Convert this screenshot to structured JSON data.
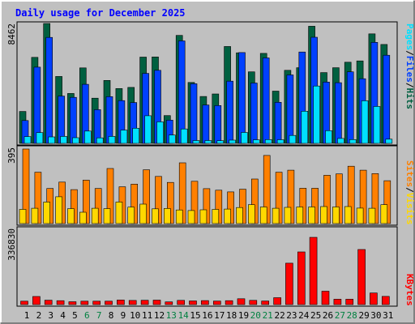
{
  "chart_data": [
    {
      "type": "bar",
      "title": "Daily usage for December 2025",
      "categories": [
        "1",
        "2",
        "3",
        "4",
        "5",
        "6",
        "7",
        "8",
        "9",
        "10",
        "11",
        "12",
        "13",
        "14",
        "15",
        "16",
        "17",
        "18",
        "19",
        "20",
        "21",
        "22",
        "23",
        "24",
        "25",
        "26",
        "27",
        "28",
        "29",
        "30",
        "31"
      ],
      "weekend_days": [
        "6",
        "7",
        "13",
        "14",
        "20",
        "21",
        "27",
        "28"
      ],
      "y_tick": "8462",
      "ylim": [
        0,
        8462
      ],
      "series": [
        {
          "name": "Hits",
          "color": "#006040",
          "values": [
            2250,
            6070,
            8462,
            4720,
            3520,
            5330,
            3190,
            4440,
            3870,
            3950,
            6090,
            6100,
            1960,
            7620,
            4300,
            3310,
            3490,
            6840,
            6390,
            5050,
            6350,
            3690,
            5160,
            5340,
            8270,
            5000,
            5340,
            5730,
            5820,
            7730,
            6980
          ]
        },
        {
          "name": "Files",
          "color": "#0040ff",
          "values": [
            1610,
            5380,
            7480,
            3340,
            3250,
            4170,
            2380,
            3300,
            3020,
            2880,
            4940,
            5160,
            1640,
            7230,
            4210,
            2710,
            2670,
            4390,
            6410,
            4260,
            6030,
            2900,
            4830,
            6450,
            7490,
            4330,
            4280,
            5050,
            4560,
            7130,
            6220
          ]
        },
        {
          "name": "Pages",
          "color": "#00e0ff",
          "values": [
            480,
            760,
            460,
            490,
            400,
            870,
            390,
            490,
            940,
            1070,
            1950,
            1520,
            590,
            1020,
            200,
            200,
            190,
            230,
            770,
            250,
            270,
            260,
            560,
            2270,
            4050,
            900,
            350,
            270,
            3010,
            2610,
            300
          ]
        }
      ]
    },
    {
      "type": "bar",
      "y_tick": "395",
      "ylim": [
        0,
        395
      ],
      "series": [
        {
          "name": "Visits",
          "color": "#ffd800",
          "values": [
            75,
            81,
            114,
            142,
            79,
            60,
            81,
            79,
            114,
            87,
            103,
            78,
            80,
            72,
            69,
            73,
            75,
            77,
            85,
            100,
            88,
            81,
            86,
            88,
            88,
            90,
            88,
            90,
            82,
            81,
            100
          ]
        },
        {
          "name": "Sites",
          "color": "#ff8000",
          "values": [
            395,
            272,
            186,
            220,
            180,
            230,
            186,
            292,
            195,
            209,
            285,
            250,
            218,
            322,
            224,
            185,
            177,
            168,
            182,
            236,
            361,
            272,
            283,
            187,
            187,
            256,
            263,
            304,
            283,
            265,
            227
          ]
        }
      ]
    },
    {
      "type": "bar",
      "y_tick": "336830",
      "ylim": [
        0,
        336830
      ],
      "series": [
        {
          "name": "KBytes",
          "color": "#ff0000",
          "values": [
            15500,
            36500,
            19800,
            17600,
            12700,
            15400,
            15400,
            15400,
            20500,
            18500,
            19500,
            20000,
            12100,
            18900,
            16500,
            17900,
            15700,
            17700,
            26300,
            19000,
            16200,
            31200,
            187000,
            238000,
            304000,
            60500,
            24000,
            24000,
            249000,
            52400,
            37000
          ]
        }
      ]
    }
  ],
  "right_labels": {
    "top": [
      "Pages",
      "/",
      "Files",
      "/",
      "Hits"
    ],
    "middle": [
      "Sites",
      "/",
      "Visits"
    ],
    "bottom": [
      "KBytes"
    ]
  },
  "colors": {
    "background": "#c0c0c0",
    "frame_light": "#ffffff",
    "frame_dark": "#808080",
    "title": "#0000ff",
    "tick_weekday": "#000000",
    "tick_weekend": "#008040",
    "slash": "#000000"
  }
}
